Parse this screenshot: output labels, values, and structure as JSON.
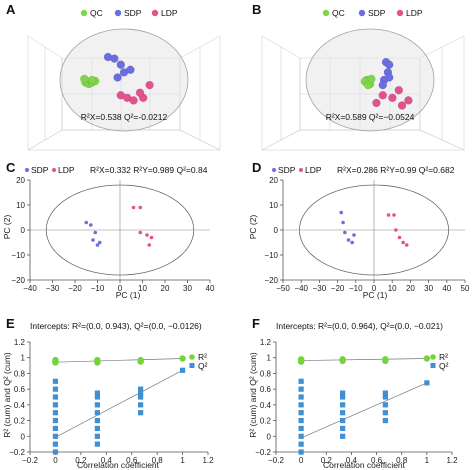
{
  "colors": {
    "QC": "#7fd64a",
    "SDP": "#6a6ee0",
    "LDP": "#e2528e",
    "R2": "#74d43c",
    "Q2": "#3f8fd2"
  },
  "panels": {
    "A": {
      "letter": "A",
      "legend": [
        "QC",
        "SDP",
        "LDP"
      ],
      "stats": "R²X=0.538  Q²=-0.0212"
    },
    "B": {
      "letter": "B",
      "legend": [
        "QC",
        "SDP",
        "LDP"
      ],
      "stats": "R²X=0.589  Q²=−0.0524"
    },
    "C": {
      "letter": "C",
      "legend": [
        "SDP",
        "LDP"
      ],
      "stats": "R²X=0.332  R²Y=0.989  Q²=0.84",
      "xlabel": "PC (1)",
      "ylabel": "PC (2)"
    },
    "D": {
      "letter": "D",
      "legend": [
        "SDP",
        "LDP"
      ],
      "stats": "R²X=0.286  R²Y=0.99  Q²=0.682",
      "xlabel": "PC (1)",
      "ylabel": "PC (2)"
    },
    "E": {
      "letter": "E",
      "intercepts": "Intercepts: R²=(0.0, 0.943), Q²=(0.0, −0.0126)",
      "xlabel": "Correlation coefficient",
      "ylabel": "R² (cum) and Q² (cum)",
      "legend": [
        "R²",
        "Q²"
      ]
    },
    "F": {
      "letter": "F",
      "intercepts": "Intercepts: R²=(0.0, 0.964), Q²=(0.0, −0.021)",
      "xlabel": "Correlation coefficient",
      "ylabel": "R² (cum) and Q² (cum)",
      "legend": [
        "R²",
        "Q²"
      ]
    }
  },
  "chart_data": [
    {
      "panel": "C",
      "type": "scatter",
      "xlim": [
        -40,
        40
      ],
      "ylim": [
        -20,
        20
      ],
      "xticks": [
        -40,
        -30,
        -20,
        -10,
        0,
        10,
        20,
        30,
        40
      ],
      "yticks": [
        -20,
        -10,
        0,
        10,
        20
      ],
      "series": [
        {
          "name": "SDP",
          "points": [
            [
              -15,
              3
            ],
            [
              -13,
              2
            ],
            [
              -11,
              -1
            ],
            [
              -12,
              -4
            ],
            [
              -10,
              -6
            ],
            [
              -9,
              -5
            ]
          ]
        },
        {
          "name": "LDP",
          "points": [
            [
              6,
              9
            ],
            [
              9,
              9
            ],
            [
              9,
              -1
            ],
            [
              12,
              -2
            ],
            [
              13,
              -6
            ],
            [
              14,
              -3
            ]
          ]
        }
      ]
    },
    {
      "panel": "D",
      "type": "scatter",
      "xlim": [
        -50,
        50
      ],
      "ylim": [
        -20,
        20
      ],
      "xticks": [
        -50,
        -40,
        -30,
        -20,
        -10,
        0,
        10,
        20,
        30,
        40,
        50
      ],
      "yticks": [
        -20,
        -10,
        0,
        10,
        20
      ],
      "series": [
        {
          "name": "SDP",
          "points": [
            [
              -18,
              7
            ],
            [
              -17,
              3
            ],
            [
              -16,
              -1
            ],
            [
              -14,
              -4
            ],
            [
              -12,
              -5
            ],
            [
              -11,
              -2
            ]
          ]
        },
        {
          "name": "LDP",
          "points": [
            [
              8,
              6
            ],
            [
              11,
              6
            ],
            [
              12,
              0
            ],
            [
              14,
              -3
            ],
            [
              16,
              -5
            ],
            [
              18,
              -6
            ]
          ]
        }
      ]
    },
    {
      "panel": "E",
      "type": "scatter",
      "xlim": [
        -0.2,
        1.2
      ],
      "ylim": [
        -0.2,
        1.2
      ],
      "xticks": [
        -0.2,
        0,
        0.2,
        0.4,
        0.6,
        0.8,
        1,
        1.2
      ],
      "yticks": [
        -0.2,
        0,
        0.2,
        0.4,
        0.6,
        0.8,
        1,
        1.2
      ],
      "series": [
        {
          "name": "R²",
          "points": [
            [
              0,
              0.94
            ],
            [
              0,
              0.95
            ],
            [
              0,
              0.96
            ],
            [
              0,
              0.97
            ],
            [
              0.33,
              0.94
            ],
            [
              0.33,
              0.95
            ],
            [
              0.33,
              0.96
            ],
            [
              0.33,
              0.97
            ],
            [
              0.67,
              0.95
            ],
            [
              0.67,
              0.96
            ],
            [
              0.67,
              0.97
            ],
            [
              1,
              0.99
            ]
          ],
          "regression": [
            [
              0,
              0.943
            ],
            [
              1,
              0.99
            ]
          ]
        },
        {
          "name": "Q²",
          "points": [
            [
              0,
              -0.2
            ],
            [
              0,
              -0.1
            ],
            [
              0,
              0.0
            ],
            [
              0,
              0.1
            ],
            [
              0,
              0.2
            ],
            [
              0,
              0.3
            ],
            [
              0,
              0.4
            ],
            [
              0,
              0.5
            ],
            [
              0,
              0.6
            ],
            [
              0,
              0.7
            ],
            [
              0.33,
              -0.1
            ],
            [
              0.33,
              0.0
            ],
            [
              0.33,
              0.1
            ],
            [
              0.33,
              0.2
            ],
            [
              0.33,
              0.3
            ],
            [
              0.33,
              0.4
            ],
            [
              0.33,
              0.5
            ],
            [
              0.33,
              0.55
            ],
            [
              0.67,
              0.3
            ],
            [
              0.67,
              0.4
            ],
            [
              0.67,
              0.5
            ],
            [
              0.67,
              0.55
            ],
            [
              0.67,
              0.6
            ],
            [
              1,
              0.84
            ]
          ],
          "regression": [
            [
              0,
              -0.0126
            ],
            [
              1,
              0.84
            ]
          ]
        }
      ]
    },
    {
      "panel": "F",
      "type": "scatter",
      "xlim": [
        -0.2,
        1.2
      ],
      "ylim": [
        -0.2,
        1.2
      ],
      "xticks": [
        -0.2,
        0,
        0.2,
        0.4,
        0.6,
        0.8,
        1,
        1.2
      ],
      "yticks": [
        -0.2,
        0,
        0.2,
        0.4,
        0.6,
        0.8,
        1,
        1.2
      ],
      "series": [
        {
          "name": "R²",
          "points": [
            [
              0,
              0.95
            ],
            [
              0,
              0.96
            ],
            [
              0,
              0.97
            ],
            [
              0,
              0.98
            ],
            [
              0.33,
              0.96
            ],
            [
              0.33,
              0.97
            ],
            [
              0.33,
              0.98
            ],
            [
              0.67,
              0.96
            ],
            [
              0.67,
              0.97
            ],
            [
              0.67,
              0.98
            ],
            [
              1,
              0.99
            ]
          ],
          "regression": [
            [
              0,
              0.964
            ],
            [
              1,
              0.99
            ]
          ]
        },
        {
          "name": "Q²",
          "points": [
            [
              0,
              -0.2
            ],
            [
              0,
              -0.1
            ],
            [
              0,
              0.0
            ],
            [
              0,
              0.1
            ],
            [
              0,
              0.2
            ],
            [
              0,
              0.3
            ],
            [
              0,
              0.4
            ],
            [
              0,
              0.5
            ],
            [
              0,
              0.6
            ],
            [
              0,
              0.7
            ],
            [
              0.33,
              0.0
            ],
            [
              0.33,
              0.1
            ],
            [
              0.33,
              0.2
            ],
            [
              0.33,
              0.3
            ],
            [
              0.33,
              0.4
            ],
            [
              0.33,
              0.5
            ],
            [
              0.33,
              0.55
            ],
            [
              0.67,
              0.2
            ],
            [
              0.67,
              0.3
            ],
            [
              0.67,
              0.4
            ],
            [
              0.67,
              0.5
            ],
            [
              0.67,
              0.55
            ],
            [
              1,
              0.68
            ]
          ],
          "regression": [
            [
              0,
              -0.021
            ],
            [
              1,
              0.68
            ]
          ]
        }
      ]
    }
  ],
  "scores3d": [
    {
      "panel": "A",
      "series": [
        {
          "name": "QC",
          "points": [
            [
              -0.6,
              -0.05
            ],
            [
              -0.55,
              -0.08
            ],
            [
              -0.5,
              -0.05
            ],
            [
              -0.45,
              -0.02
            ],
            [
              -0.5,
              0.0
            ],
            [
              -0.62,
              0.02
            ]
          ]
        },
        {
          "name": "SDP",
          "points": [
            [
              -0.25,
              0.45
            ],
            [
              -0.15,
              0.42
            ],
            [
              -0.05,
              0.3
            ],
            [
              0.0,
              0.15
            ],
            [
              -0.1,
              0.05
            ],
            [
              0.1,
              0.2
            ]
          ]
        },
        {
          "name": "LDP",
          "points": [
            [
              -0.05,
              -0.3
            ],
            [
              0.05,
              -0.35
            ],
            [
              0.15,
              -0.4
            ],
            [
              0.3,
              -0.35
            ],
            [
              0.25,
              -0.25
            ],
            [
              0.4,
              -0.1
            ]
          ]
        }
      ]
    },
    {
      "panel": "B",
      "series": [
        {
          "name": "QC",
          "points": [
            [
              -0.05,
              0.0
            ],
            [
              -0.02,
              -0.05
            ],
            [
              0.0,
              -0.08
            ],
            [
              0.02,
              0.02
            ],
            [
              -0.08,
              -0.03
            ],
            [
              -0.03,
              -0.1
            ]
          ]
        },
        {
          "name": "SDP",
          "points": [
            [
              0.25,
              0.35
            ],
            [
              0.3,
              0.3
            ],
            [
              0.28,
              0.15
            ],
            [
              0.22,
              0.0
            ],
            [
              0.3,
              0.05
            ],
            [
              0.2,
              -0.1
            ]
          ]
        },
        {
          "name": "LDP",
          "points": [
            [
              0.1,
              -0.45
            ],
            [
              0.35,
              -0.35
            ],
            [
              0.45,
              -0.2
            ],
            [
              0.5,
              -0.5
            ],
            [
              0.2,
              -0.3
            ],
            [
              0.6,
              -0.4
            ]
          ]
        }
      ]
    }
  ]
}
